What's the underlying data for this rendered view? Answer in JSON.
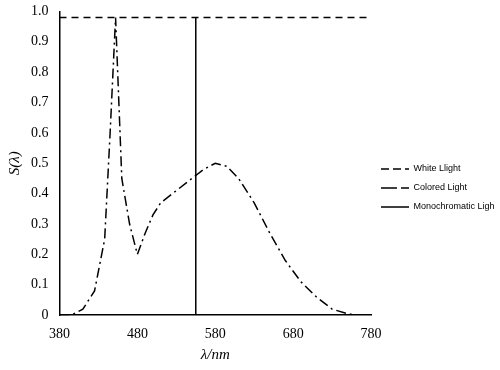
{
  "chart_data": {
    "type": "line",
    "x_label": "λ/nm",
    "y_label": "S(λ)",
    "xlim": [
      380,
      780
    ],
    "xticks": [
      380,
      480,
      580,
      680,
      780
    ],
    "ylim": [
      0,
      1
    ],
    "yticks": [
      0,
      0.1,
      0.2,
      0.3,
      0.4,
      0.5,
      0.6,
      0.7,
      0.8,
      0.9,
      {
        "value": 1,
        "label": "1.0"
      }
    ],
    "grid": false,
    "legend": "right",
    "series": [
      {
        "name": "White Llight",
        "color": "#000000",
        "line_style": "dashed",
        "x": [
          380,
          780
        ],
        "values": [
          0.98,
          0.98
        ]
      },
      {
        "name": "Colored Light",
        "color": "#000000",
        "line_style": "dashdot",
        "x": [
          380,
          395,
          410,
          425,
          438,
          445,
          452,
          460,
          470,
          480,
          490,
          500,
          510,
          530,
          550,
          565,
          580,
          595,
          610,
          630,
          650,
          670,
          690,
          710,
          730,
          750,
          760
        ],
        "values": [
          0,
          0,
          0.02,
          0.08,
          0.25,
          0.6,
          0.98,
          0.45,
          0.3,
          0.2,
          0.27,
          0.33,
          0.37,
          0.41,
          0.45,
          0.48,
          0.5,
          0.49,
          0.45,
          0.37,
          0.27,
          0.18,
          0.11,
          0.06,
          0.02,
          0.005,
          0
        ]
      },
      {
        "name": "Monochromatic Light",
        "color": "#000000",
        "line_style": "solid",
        "x": [
          555,
          555
        ],
        "values": [
          0,
          0.98
        ]
      }
    ]
  }
}
